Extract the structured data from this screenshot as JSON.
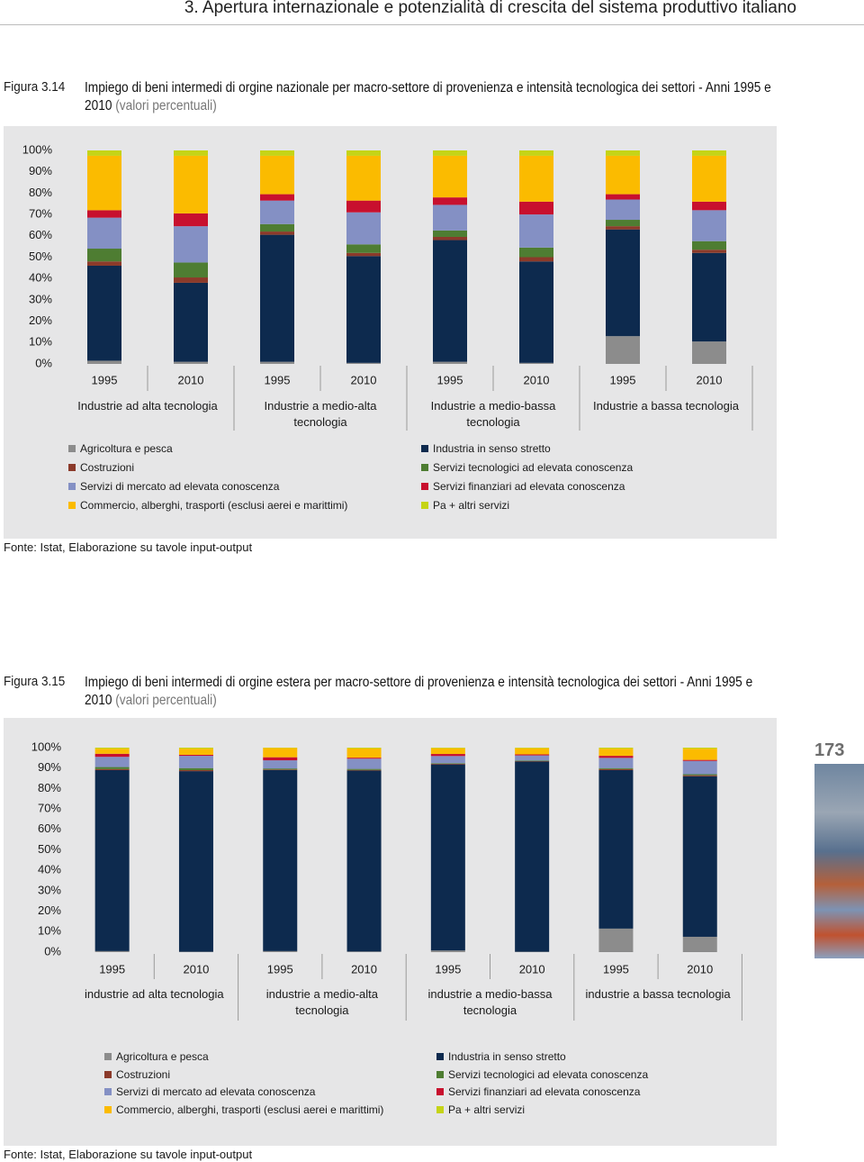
{
  "header": "3. Apertura internazionale e potenzialità di crescita del sistema produttivo italiano",
  "page_number": "173",
  "chart_data": [
    {
      "type": "bar",
      "stacked": true,
      "label": "Figura 3.14",
      "title": "Impiego di beni intermedi di orgine nazionale per macro-settore di provenienza e intensità tecnologica dei settori - Anni 1995 e 2010",
      "subtitle": "(valori percentuali)",
      "categories": [
        "1995",
        "2010",
        "1995",
        "2010",
        "1995",
        "2010",
        "1995",
        "2010"
      ],
      "groups": [
        "Industrie ad alta tecnologia",
        "Industrie a medio-alta tecnologia",
        "Industrie a medio-bassa tecnologia",
        "Industrie a bassa tecnologia"
      ],
      "ylim": [
        0,
        100
      ],
      "yticks": [
        {
          "value": 0,
          "label": "0%"
        },
        {
          "value": 10,
          "label": "10%"
        },
        {
          "value": 20,
          "label": "20%"
        },
        {
          "value": 30,
          "label": "30%"
        },
        {
          "value": 40,
          "label": "40%"
        },
        {
          "value": 50,
          "label": "50%"
        },
        {
          "value": 60,
          "label": "60%"
        },
        {
          "value": 70,
          "label": "70%"
        },
        {
          "value": 80,
          "label": "80%"
        },
        {
          "value": 90,
          "label": "90%"
        },
        {
          "value": 100,
          "label": "100%"
        }
      ],
      "series": [
        {
          "name": "Agricoltura e pesca",
          "color": "#8c8c8c",
          "values": [
            1.5,
            1,
            1,
            0.5,
            1,
            0.5,
            13,
            10.5
          ]
        },
        {
          "name": "Industria in senso stretto",
          "color": "#0d2a4e",
          "values": [
            44.5,
            37,
            59.5,
            50,
            57,
            47.5,
            50,
            41.5
          ]
        },
        {
          "name": "Costruzioni",
          "color": "#8b3a2a",
          "values": [
            2,
            2.5,
            1.5,
            1.5,
            1.5,
            2,
            1.5,
            1.5
          ]
        },
        {
          "name": "Servizi tecnologici ad elevata conoscenza",
          "color": "#4e7d32",
          "values": [
            6,
            7,
            3.5,
            4,
            3,
            4.5,
            3,
            4
          ]
        },
        {
          "name": "Servizi di mercato ad elevata conoscenza",
          "color": "#8490c4",
          "values": [
            14.5,
            17,
            11,
            15,
            12,
            15.5,
            9.5,
            14.5
          ]
        },
        {
          "name": "Servizi finanziari ad elevata conoscenza",
          "color": "#c8102e",
          "values": [
            3.5,
            6,
            3,
            5.5,
            3.5,
            6,
            2.5,
            4
          ]
        },
        {
          "name": "Commercio, alberghi, trasporti (esclusi aerei e marittimi)",
          "color": "#fbbb00",
          "values": [
            25.5,
            27,
            18,
            21,
            19.5,
            21.5,
            18,
            21.5
          ]
        },
        {
          "name": "Pa + altri servizi",
          "color": "#c5d417",
          "values": [
            2.5,
            2.5,
            2.5,
            2.5,
            2.5,
            2.5,
            2.5,
            2.5
          ]
        }
      ],
      "source": "Fonte: Istat, Elaborazione su tavole input-output"
    },
    {
      "type": "bar",
      "stacked": true,
      "label": "Figura 3.15",
      "title": "Impiego di beni intermedi di orgine estera per macro-settore di provenienza e intensità tecnologica dei settori - Anni 1995 e 2010",
      "subtitle": "(valori percentuali)",
      "categories": [
        "1995",
        "2010",
        "1995",
        "2010",
        "1995",
        "2010",
        "1995",
        "2010"
      ],
      "groups": [
        "industrie ad alta tecnologia",
        "industrie a medio-alta tecnologia",
        "industrie a medio-bassa tecnologia",
        "industrie a bassa tecnologia"
      ],
      "ylim": [
        0,
        100
      ],
      "yticks": [
        {
          "value": 0,
          "label": "0%"
        },
        {
          "value": 10,
          "label": "10%"
        },
        {
          "value": 20,
          "label": "20%"
        },
        {
          "value": 30,
          "label": "30%"
        },
        {
          "value": 40,
          "label": "40%"
        },
        {
          "value": 50,
          "label": "50%"
        },
        {
          "value": 60,
          "label": "60%"
        },
        {
          "value": 70,
          "label": "70%"
        },
        {
          "value": 80,
          "label": "80%"
        },
        {
          "value": 90,
          "label": "90%"
        },
        {
          "value": 100,
          "label": "100%"
        }
      ],
      "series": [
        {
          "name": "Agricoltura e pesca",
          "color": "#8c8c8c",
          "values": [
            0.5,
            0.2,
            0.5,
            0.3,
            0.8,
            0.2,
            11.5,
            7.5
          ]
        },
        {
          "name": "Industria in senso stretto",
          "color": "#0d2a4e",
          "values": [
            88.5,
            88.3,
            88.5,
            88.5,
            91,
            93,
            77.5,
            78.5
          ]
        },
        {
          "name": "Costruzioni",
          "color": "#8b3a2a",
          "values": [
            0.5,
            0.5,
            0.3,
            0.3,
            0.3,
            0.2,
            0.5,
            0.5
          ]
        },
        {
          "name": "Servizi tecnologici ad elevata conoscenza",
          "color": "#4e7d32",
          "values": [
            1,
            1,
            0.5,
            0.5,
            0.3,
            0.3,
            0.5,
            0.5
          ]
        },
        {
          "name": "Servizi di mercato ad elevata conoscenza",
          "color": "#8490c4",
          "values": [
            5,
            6,
            4,
            5,
            3.5,
            2.5,
            5,
            6.5
          ]
        },
        {
          "name": "Servizi finanziari ad elevata conoscenza",
          "color": "#c8102e",
          "values": [
            1.5,
            0.5,
            1.5,
            0.5,
            1,
            0.5,
            1,
            0.5
          ]
        },
        {
          "name": "Commercio, alberghi, trasporti (esclusi aerei e marittimi)",
          "color": "#fbbb00",
          "values": [
            2.5,
            3,
            4.5,
            4.5,
            2.8,
            3,
            3.5,
            5.5
          ]
        },
        {
          "name": "Pa + altri servizi",
          "color": "#c5d417",
          "values": [
            0.5,
            0.5,
            0.2,
            0.4,
            0.3,
            0.3,
            0.5,
            0.5
          ]
        }
      ],
      "source": "Fonte: Istat, Elaborazione su tavole input-output"
    }
  ]
}
